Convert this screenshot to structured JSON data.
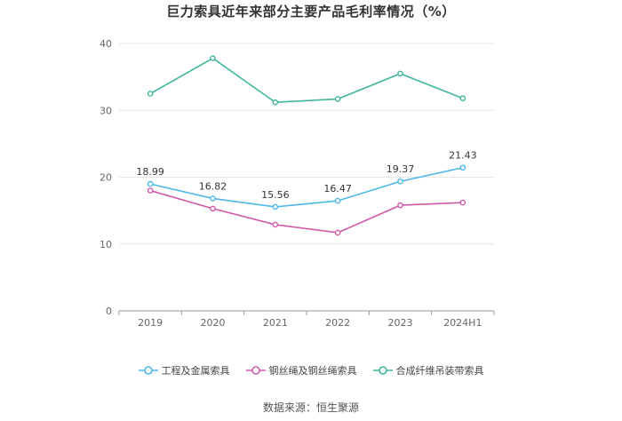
{
  "chart_data": {
    "type": "line",
    "title": "巨力索具近年来部分主要产品毛利率情况（%）",
    "categories": [
      "2019",
      "2020",
      "2021",
      "2022",
      "2023",
      "2024H1"
    ],
    "ylim": [
      0,
      40
    ],
    "yticks": [
      "0",
      "10",
      "20",
      "30",
      "40"
    ],
    "grid": true,
    "legend_position": "bottom",
    "series": [
      {
        "name": "工程及金属索具",
        "color": "#4db8ec",
        "values": [
          18.99,
          16.82,
          15.56,
          16.47,
          19.37,
          21.43
        ],
        "labels": [
          "18.99",
          "16.82",
          "15.56",
          "16.47",
          "19.37",
          "21.43"
        ]
      },
      {
        "name": "钢丝绳及钢丝绳索具",
        "color": "#d05aa8",
        "values": [
          18.0,
          15.3,
          12.9,
          11.7,
          15.8,
          16.2
        ]
      },
      {
        "name": "合成纤维吊装带索具",
        "color": "#3fb59b",
        "values": [
          32.5,
          37.8,
          31.2,
          31.7,
          35.5,
          31.8
        ]
      }
    ]
  },
  "source": "数据来源：恒生聚源"
}
